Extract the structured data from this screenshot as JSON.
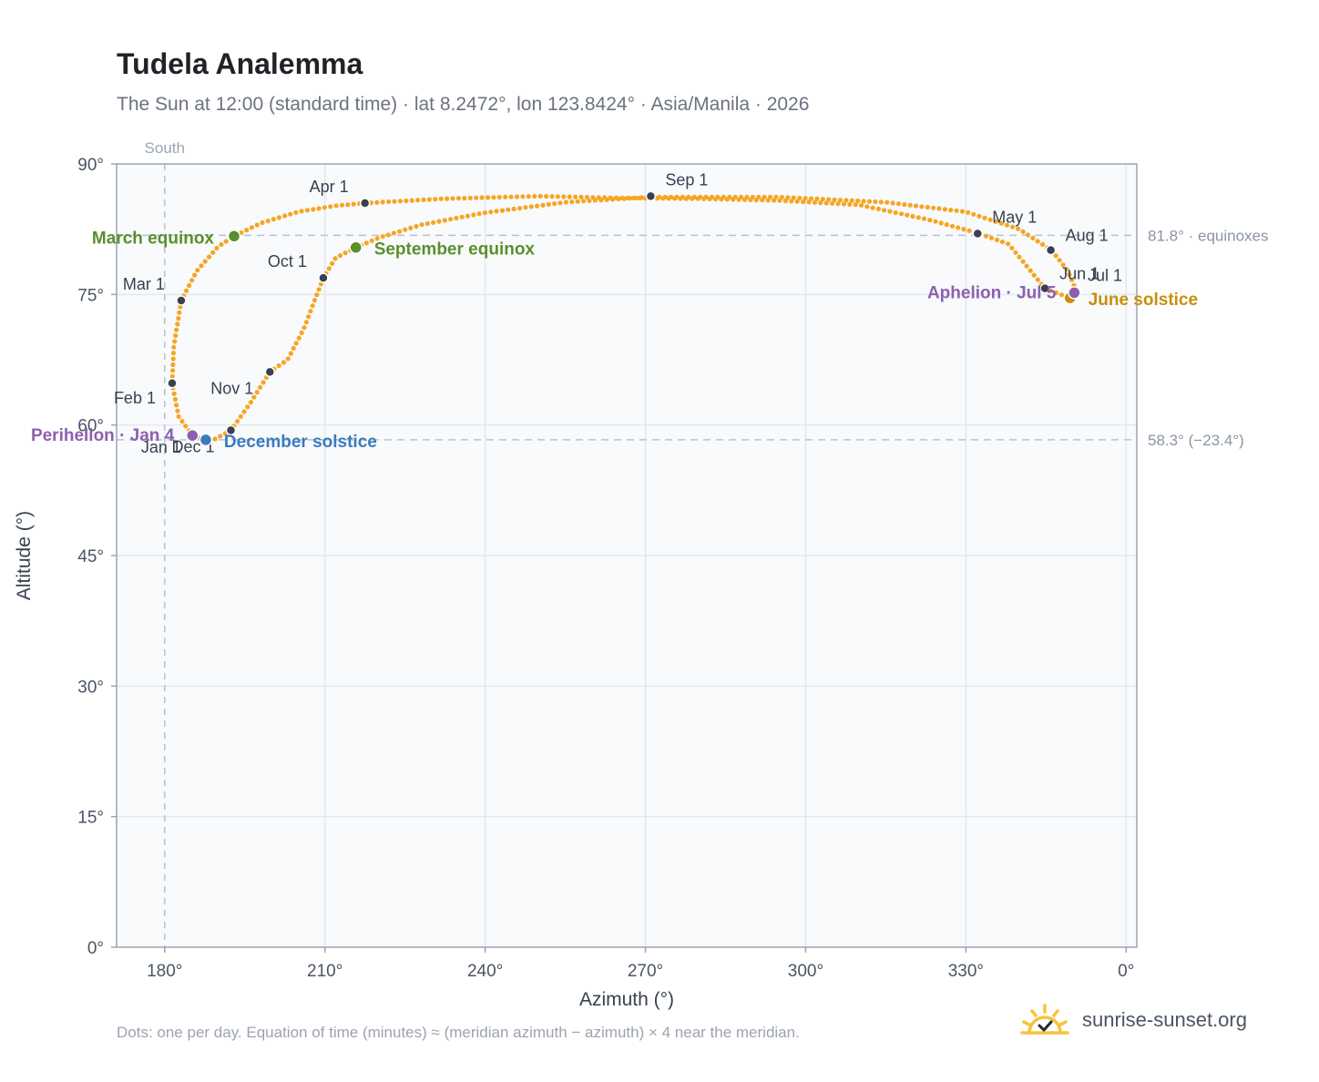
{
  "title": "Tudela Analemma",
  "subtitle": "The Sun at 12:00 (standard time) · lat 8.2472°, lon 123.8424° · Asia/Manila · 2026",
  "footnote": "Dots: one per day. Equation of time (minutes) ≈ (meridian azimuth − azimuth) × 4 near the meridian.",
  "brand": {
    "name": "sunrise-sunset.org",
    "icon": "sun-logo-icon"
  },
  "colors": {
    "path": "#f5a623",
    "month_dot": "#374151",
    "equinox": "#5a8f2e",
    "december_solstice": "#3a7bbf",
    "june_solstice": "#c78f0e",
    "perihelion_aphelion": "#8e5fb0",
    "plot_bg": "#f8fafc",
    "axis": "#9aa5b1"
  },
  "chart_data": {
    "type": "scatter",
    "xlabel": "Azimuth (°)",
    "ylabel": "Altitude (°)",
    "xlim": [
      171,
      0
    ],
    "ylim": [
      0,
      90
    ],
    "x_ticks": [
      "180°",
      "210°",
      "240°",
      "270°",
      "300°",
      "330°",
      "0°"
    ],
    "y_ticks": [
      "0°",
      "15°",
      "30°",
      "45°",
      "60°",
      "75°",
      "90°"
    ],
    "grid": true,
    "south_marker": {
      "label": "South",
      "azimuth": 180
    },
    "reference_lines": [
      {
        "label": "81.8° · equinoxes",
        "altitude": 81.8
      },
      {
        "label": "58.3° (−23.4°)",
        "altitude": 58.3
      }
    ],
    "series_path": [
      [
        185.2,
        58.8
      ],
      [
        182.6,
        61.0
      ],
      [
        181.4,
        64.8
      ],
      [
        181.7,
        69.0
      ],
      [
        183.1,
        74.3
      ],
      [
        186.0,
        77.7
      ],
      [
        190.0,
        80.5
      ],
      [
        193.0,
        81.7
      ],
      [
        198.0,
        83.2
      ],
      [
        205.0,
        84.5
      ],
      [
        212.0,
        85.2
      ],
      [
        217.5,
        85.5
      ],
      [
        232.0,
        86.0
      ],
      [
        250.0,
        86.3
      ],
      [
        265.0,
        86.1
      ],
      [
        280.0,
        86.0
      ],
      [
        295.0,
        85.8
      ],
      [
        310.0,
        85.3
      ],
      [
        323.0,
        83.6
      ],
      [
        332.0,
        82.1
      ],
      [
        338.0,
        80.8
      ],
      [
        344.8,
        75.7
      ],
      [
        349.5,
        74.6
      ],
      [
        350.5,
        75.7
      ],
      [
        349.0,
        77.8
      ],
      [
        346.0,
        80.1
      ],
      [
        340.0,
        82.5
      ],
      [
        330.0,
        84.5
      ],
      [
        315.0,
        85.6
      ],
      [
        295.0,
        86.2
      ],
      [
        271.0,
        86.2
      ],
      [
        255.0,
        85.6
      ],
      [
        240.0,
        84.4
      ],
      [
        228.0,
        83.0
      ],
      [
        220.0,
        81.5
      ],
      [
        215.8,
        80.4
      ],
      [
        212.0,
        79.2
      ],
      [
        209.7,
        76.9
      ],
      [
        206.0,
        71.0
      ],
      [
        203.0,
        67.5
      ],
      [
        199.7,
        66.1
      ],
      [
        196.0,
        62.5
      ],
      [
        192.4,
        59.4
      ],
      [
        189.5,
        58.4
      ],
      [
        187.7,
        58.3
      ],
      [
        185.2,
        58.8
      ]
    ],
    "month_points": [
      {
        "label": "Jan 1",
        "az": 184.8,
        "alt": 58.7
      },
      {
        "label": "Feb 1",
        "az": 181.4,
        "alt": 64.8
      },
      {
        "label": "Mar 1",
        "az": 183.1,
        "alt": 74.3
      },
      {
        "label": "Apr 1",
        "az": 217.5,
        "alt": 85.5
      },
      {
        "label": "May 1",
        "az": 332.2,
        "alt": 82.0
      },
      {
        "label": "Jun 1",
        "az": 344.8,
        "alt": 75.7
      },
      {
        "label": "Jul 1",
        "az": 350.4,
        "alt": 75.3
      },
      {
        "label": "Aug 1",
        "az": 345.9,
        "alt": 80.1
      },
      {
        "label": "Sep 1",
        "az": 271.0,
        "alt": 86.3
      },
      {
        "label": "Oct 1",
        "az": 209.7,
        "alt": 76.9
      },
      {
        "label": "Nov 1",
        "az": 199.7,
        "alt": 66.1
      },
      {
        "label": "Dec 1",
        "az": 192.4,
        "alt": 59.4
      }
    ],
    "special_points": [
      {
        "label": "March equinox",
        "az": 193.0,
        "alt": 81.7,
        "color_key": "equinox"
      },
      {
        "label": "September equinox",
        "az": 215.8,
        "alt": 80.4,
        "color_key": "equinox"
      },
      {
        "label": "December solstice",
        "az": 187.7,
        "alt": 58.3,
        "color_key": "december_solstice"
      },
      {
        "label": "June solstice",
        "az": 349.5,
        "alt": 74.6,
        "color_key": "june_solstice"
      },
      {
        "label": "Perihelion · Jan 4",
        "az": 185.2,
        "alt": 58.8,
        "color_key": "perihelion_aphelion"
      },
      {
        "label": "Aphelion · Jul 5",
        "az": 350.3,
        "alt": 75.2,
        "color_key": "perihelion_aphelion"
      }
    ]
  }
}
